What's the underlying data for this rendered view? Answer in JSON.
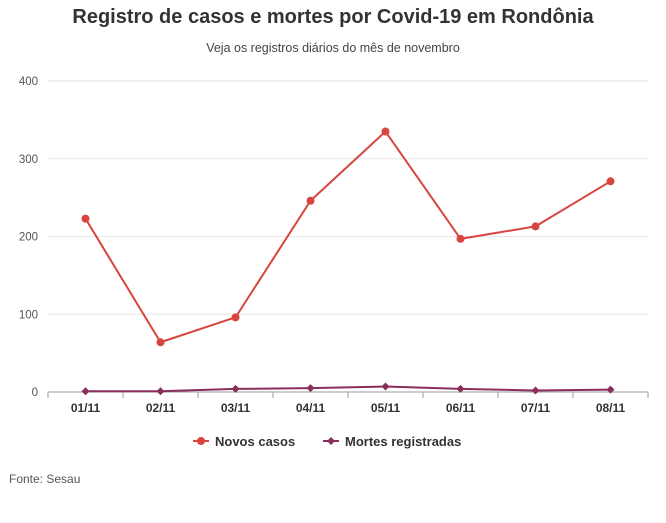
{
  "chart_data": {
    "type": "line",
    "title": "Registro de casos e mortes por Covid-19 em Rondônia",
    "subtitle": "Veja os registros diários do mês de novembro",
    "categories": [
      "01/11",
      "02/11",
      "03/11",
      "04/11",
      "05/11",
      "06/11",
      "07/11",
      "08/11"
    ],
    "series": [
      {
        "name": "Novos casos",
        "color": "#d9443f",
        "marker": "circle",
        "values": [
          223,
          64,
          96,
          246,
          335,
          197,
          213,
          271
        ]
      },
      {
        "name": "Mortes registradas",
        "color": "#8b2e5a",
        "marker": "diamond",
        "values": [
          1,
          1,
          4,
          5,
          7,
          4,
          2,
          3
        ]
      }
    ],
    "ylim": [
      0,
      400
    ],
    "yticks": [
      0,
      100,
      200,
      300,
      400
    ],
    "grid": true,
    "legend": "bottom-center",
    "source": "Fonte: Sesau"
  }
}
